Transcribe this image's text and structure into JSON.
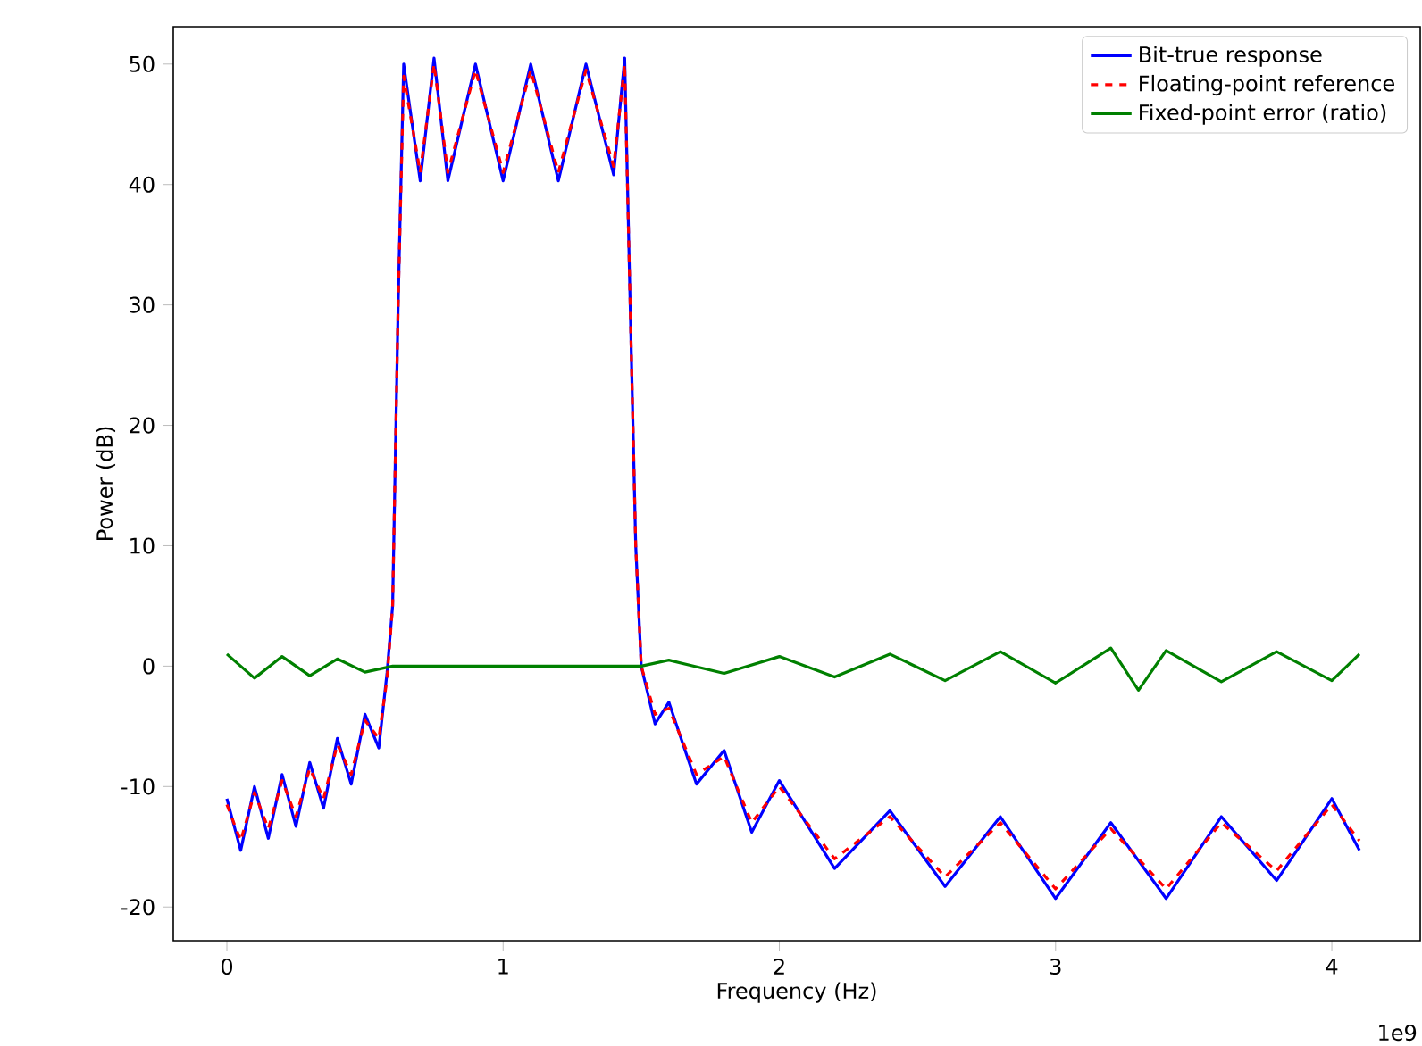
{
  "chart_data": {
    "type": "line",
    "xlabel": "Frequency (Hz)",
    "ylabel": "Power (dB)",
    "annotations": [
      "1e9"
    ],
    "xlim": [
      -0.194,
      4.32
    ],
    "ylim": [
      -22.8,
      53.1
    ],
    "xticks": [
      0,
      1,
      2,
      3,
      4
    ],
    "yticks": [
      -20,
      -10,
      0,
      10,
      20,
      30,
      40,
      50
    ],
    "legend": "top right",
    "marker": "none",
    "series": [
      {
        "name": "Bit-true response",
        "color": "#0000ff",
        "line_style": "solid",
        "x": [
          0,
          0.05,
          0.1,
          0.15,
          0.2,
          0.25,
          0.3,
          0.35,
          0.4,
          0.45,
          0.5,
          0.55,
          0.58,
          0.6,
          0.62,
          0.64,
          0.7,
          0.75,
          0.8,
          0.9,
          1.0,
          1.1,
          1.2,
          1.3,
          1.4,
          1.44,
          1.46,
          1.48,
          1.5,
          1.55,
          1.6,
          1.7,
          1.8,
          1.9,
          2.0,
          2.2,
          2.4,
          2.6,
          2.8,
          3.0,
          3.2,
          3.4,
          3.6,
          3.8,
          4.0,
          4.1
        ],
        "values": [
          -11,
          -15.3,
          -10,
          -14.3,
          -9,
          -13.3,
          -8,
          -11.8,
          -6,
          -9.8,
          -4,
          -6.8,
          -0.5,
          5,
          30,
          50,
          40.3,
          50.5,
          40.3,
          50,
          40.3,
          50,
          40.3,
          50,
          40.8,
          50.5,
          30,
          10,
          0,
          -4.8,
          -3,
          -9.8,
          -7,
          -13.8,
          -9.5,
          -16.8,
          -12,
          -18.3,
          -12.5,
          -19.3,
          -13,
          -19.3,
          -12.5,
          -17.8,
          -11,
          -15.3
        ]
      },
      {
        "name": "Floating-point reference",
        "color": "#ff0000",
        "line_style": "dashed",
        "x": [
          0,
          0.05,
          0.1,
          0.15,
          0.2,
          0.25,
          0.3,
          0.35,
          0.4,
          0.45,
          0.5,
          0.55,
          0.58,
          0.6,
          0.62,
          0.64,
          0.7,
          0.75,
          0.8,
          0.9,
          1.0,
          1.1,
          1.2,
          1.3,
          1.4,
          1.44,
          1.46,
          1.48,
          1.5,
          1.55,
          1.6,
          1.7,
          1.8,
          1.9,
          2.0,
          2.2,
          2.4,
          2.6,
          2.8,
          3.0,
          3.2,
          3.4,
          3.6,
          3.8,
          4.0,
          4.1
        ],
        "values": [
          -11.5,
          -14.5,
          -10.5,
          -13.5,
          -9.5,
          -12.5,
          -8.5,
          -11,
          -6.5,
          -9,
          -4.5,
          -6,
          -1,
          5,
          30,
          49,
          41,
          50,
          41,
          49.5,
          41,
          49.5,
          41,
          49.5,
          41.5,
          50,
          30,
          10,
          0,
          -4,
          -3.5,
          -9,
          -7.5,
          -13,
          -10,
          -16,
          -12.5,
          -17.5,
          -13,
          -18.5,
          -13.5,
          -18.5,
          -13,
          -17,
          -11.5,
          -14.5
        ]
      },
      {
        "name": "Fixed-point error (ratio)",
        "color": "#008000",
        "line_style": "solid",
        "x": [
          0,
          0.1,
          0.2,
          0.3,
          0.4,
          0.5,
          0.6,
          1.5,
          1.6,
          1.8,
          2.0,
          2.2,
          2.4,
          2.6,
          2.8,
          3.0,
          3.2,
          3.3,
          3.4,
          3.6,
          3.8,
          4.0,
          4.1
        ],
        "values": [
          1,
          -1,
          0.8,
          -0.8,
          0.6,
          -0.5,
          0,
          0,
          0.5,
          -0.6,
          0.8,
          -0.9,
          1,
          -1.2,
          1.2,
          -1.4,
          1.5,
          -2,
          1.3,
          -1.3,
          1.2,
          -1.2,
          1
        ]
      }
    ]
  }
}
